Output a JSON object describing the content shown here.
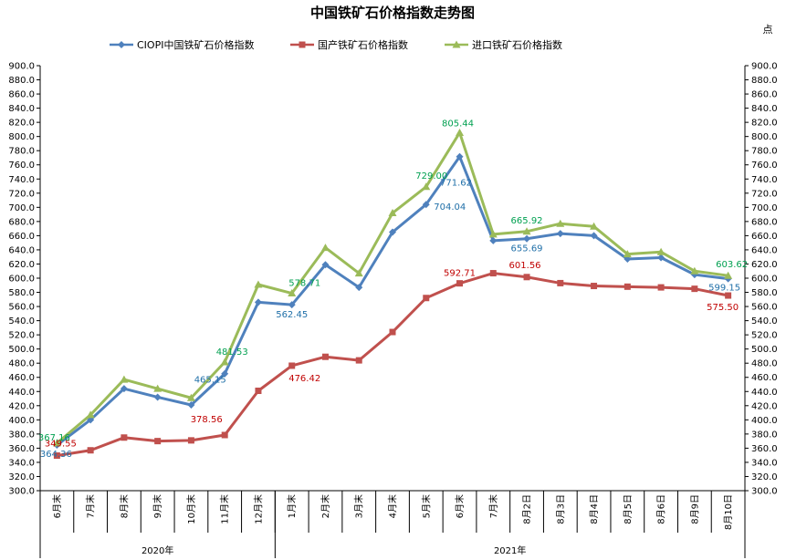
{
  "chart_data": {
    "type": "line",
    "title": "中国铁矿石价格指数走势图",
    "unit_label": "点",
    "ylim": [
      300,
      900
    ],
    "ytick_step": 20,
    "grid": false,
    "legend_position": "top",
    "categories": [
      "6月末",
      "7月末",
      "8月末",
      "9月末",
      "10月末",
      "11月末",
      "12月末",
      "1月末",
      "2月末",
      "3月末",
      "4月末",
      "5月末",
      "6月末",
      "7月末",
      "8月2日",
      "8月3日",
      "8月4日",
      "8月5日",
      "8月6日",
      "8月9日",
      "8月10日"
    ],
    "groups": [
      {
        "label": "2020年",
        "count": 7
      },
      {
        "label": "2021年",
        "count": 14
      }
    ],
    "series": [
      {
        "name": "CIOPI中国铁矿石价格指数",
        "color": "#4f81bd",
        "label_color": "#1f6fa8",
        "marker": "diamond",
        "values": [
          364.36,
          400,
          444,
          432,
          421,
          465.15,
          566,
          562.45,
          619,
          587,
          665,
          704.04,
          771.62,
          653,
          655.69,
          663,
          660,
          627,
          629,
          605,
          599.15
        ],
        "labels": [
          {
            "i": 0,
            "text": "364.36"
          },
          {
            "i": 5,
            "text": "465.15"
          },
          {
            "i": 7,
            "text": "562.45"
          },
          {
            "i": 11,
            "text": "704.04"
          },
          {
            "i": 12,
            "text": "771.62"
          },
          {
            "i": 14,
            "text": "655.69"
          },
          {
            "i": 20,
            "text": "599.15"
          }
        ]
      },
      {
        "name": "国产铁矿石价格指数",
        "color": "#c0504d",
        "label_color": "#c00000",
        "marker": "square",
        "values": [
          349.55,
          357,
          375,
          370,
          371,
          378.56,
          441,
          476.42,
          489,
          484,
          524,
          572,
          592.71,
          607,
          601.56,
          593,
          589,
          588,
          587,
          585,
          575.5
        ],
        "labels": [
          {
            "i": 0,
            "text": "349.55"
          },
          {
            "i": 5,
            "text": "378.56"
          },
          {
            "i": 7,
            "text": "476.42"
          },
          {
            "i": 12,
            "text": "592.71"
          },
          {
            "i": 14,
            "text": "601.56"
          },
          {
            "i": 20,
            "text": "575.50"
          }
        ]
      },
      {
        "name": "进口铁矿石价格指数",
        "color": "#9bbb59",
        "label_color": "#00a050",
        "marker": "triangle",
        "values": [
          367.16,
          407,
          457,
          444,
          431,
          481.53,
          591,
          578.71,
          643,
          607,
          692,
          729.0,
          805.44,
          662,
          665.92,
          677,
          673,
          634,
          637,
          610,
          603.62
        ],
        "labels": [
          {
            "i": 0,
            "text": "367.16"
          },
          {
            "i": 5,
            "text": "481.53"
          },
          {
            "i": 7,
            "text": "578.71"
          },
          {
            "i": 11,
            "text": "729.00"
          },
          {
            "i": 12,
            "text": "805.44"
          },
          {
            "i": 14,
            "text": "665.92"
          },
          {
            "i": 20,
            "text": "603.62"
          }
        ]
      }
    ]
  }
}
